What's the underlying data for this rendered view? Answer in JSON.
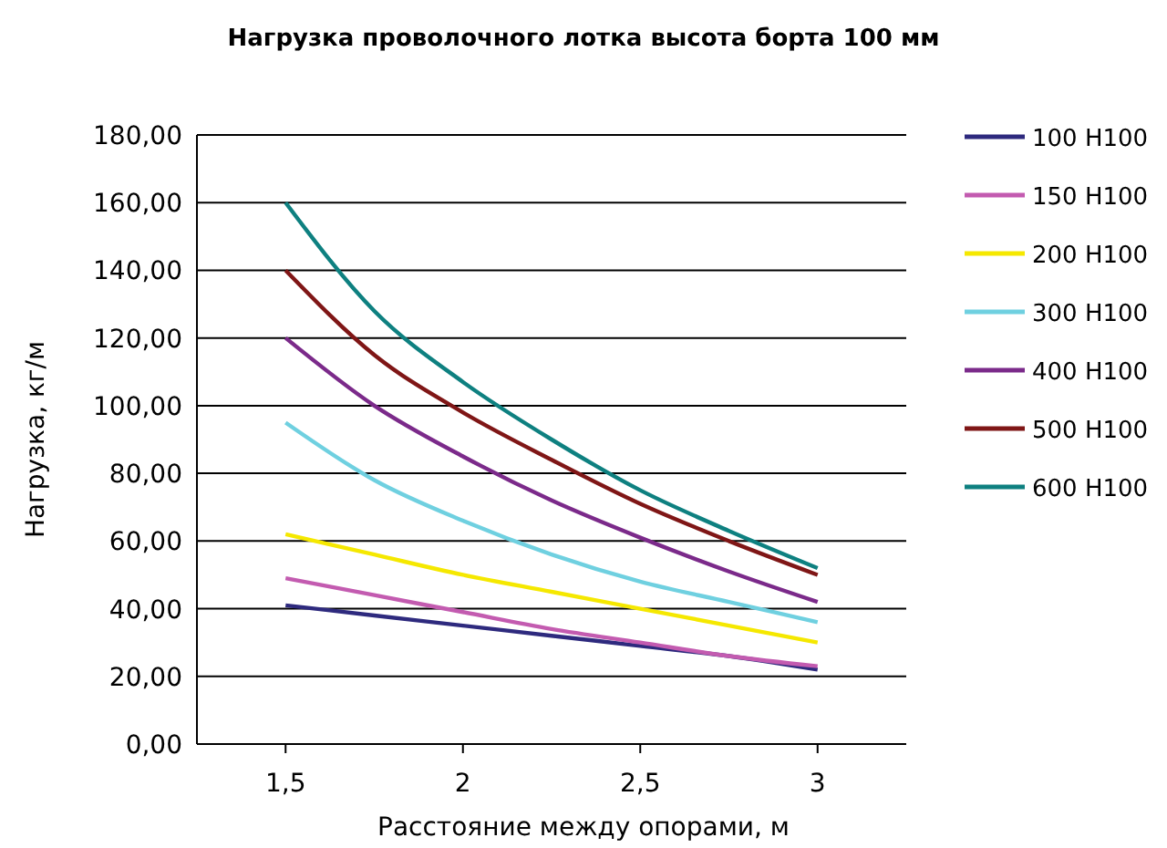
{
  "chart_data": {
    "type": "line",
    "title": "Нагрузка проволочного лотка высота борта 100 мм",
    "xlabel": "Расстояние между опорами, м",
    "ylabel": "Нагрузка, кг/м",
    "x": [
      1.5,
      1.75,
      2,
      2.25,
      2.5,
      2.75,
      3
    ],
    "xlim": [
      1.25,
      3.25
    ],
    "xticks": [
      {
        "value": 1.5,
        "label": "1,5"
      },
      2,
      {
        "value": 2.5,
        "label": "2,5"
      },
      3
    ],
    "ylim": [
      0,
      180
    ],
    "yticks": [
      {
        "value": 0,
        "label": "0,00"
      },
      {
        "value": 20,
        "label": "20,00"
      },
      {
        "value": 40,
        "label": "40,00"
      },
      {
        "value": 60,
        "label": "60,00"
      },
      {
        "value": 80,
        "label": "80,00"
      },
      {
        "value": 100,
        "label": "100,00"
      },
      {
        "value": 120,
        "label": "120,00"
      },
      {
        "value": 140,
        "label": "140,00"
      },
      {
        "value": 160,
        "label": "160,00"
      },
      {
        "value": 180,
        "label": "180,00"
      }
    ],
    "grid": "y",
    "legend": "right",
    "marker": "none",
    "line_style": "solid",
    "series": [
      {
        "name": "100 H100",
        "color": "#2e2a7e",
        "values": [
          41,
          38,
          35,
          32,
          29,
          26,
          22
        ]
      },
      {
        "name": "150 H100",
        "color": "#c35bb0",
        "values": [
          49,
          44,
          39,
          34,
          30,
          26,
          23
        ]
      },
      {
        "name": "200 H100",
        "color": "#f5e800",
        "values": [
          62,
          56,
          50,
          45,
          40,
          35,
          30
        ]
      },
      {
        "name": "300 H100",
        "color": "#6fd0e0",
        "values": [
          95,
          78,
          66,
          56,
          48,
          42,
          36
        ]
      },
      {
        "name": "400 H100",
        "color": "#7b2a8a",
        "values": [
          120,
          100,
          85,
          72,
          61,
          51,
          42
        ]
      },
      {
        "name": "500 H100",
        "color": "#7f1616",
        "values": [
          140,
          115,
          98,
          84,
          71,
          60,
          50
        ]
      },
      {
        "name": "600 H100",
        "color": "#0e8080",
        "values": [
          160,
          128,
          107,
          90,
          75,
          63,
          52
        ]
      }
    ]
  }
}
